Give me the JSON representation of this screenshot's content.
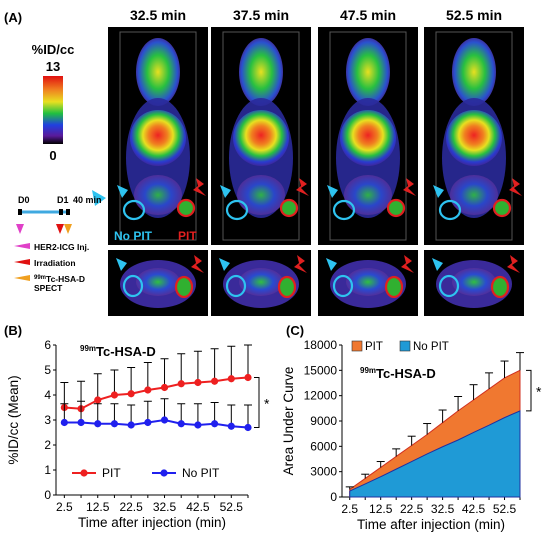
{
  "panel_a": {
    "label": "(A)",
    "time_labels": [
      "32.5 min",
      "37.5 min",
      "47.5 min",
      "52.5 min"
    ],
    "colorbar": {
      "unit": "%ID/cc",
      "max": "13",
      "min": "0"
    },
    "marker_labels": {
      "no_pit": "No PIT",
      "pit": "PIT"
    },
    "timeline": {
      "d0": "D0",
      "d1": "D1",
      "d1_extra": "40 min",
      "legend": [
        {
          "text": "HER2-ICG Inj.",
          "color": "#e040c8"
        },
        {
          "text": "Irradiation",
          "color": "#e01010"
        },
        {
          "text_sup": "99m",
          "text": "Tc-HSA-D",
          "text2": "SPECT",
          "color": "#f0a020"
        }
      ]
    }
  },
  "chart_data": [
    {
      "type": "line",
      "panel_label": "(B)",
      "title_sup": "99m",
      "title": "Tc-HSA-D",
      "xlabel": "Time after injection (min)",
      "ylabel": "%ID/cc (Mean)",
      "xlim": [
        0,
        57.5
      ],
      "ylim": [
        0,
        6
      ],
      "xticks": [
        "2.5",
        "12.5",
        "22.5",
        "32.5",
        "42.5",
        "52.5"
      ],
      "yticks": [
        "0",
        "1",
        "2",
        "3",
        "4",
        "5",
        "6"
      ],
      "x": [
        2.5,
        7.5,
        12.5,
        17.5,
        22.5,
        27.5,
        32.5,
        37.5,
        42.5,
        47.5,
        52.5,
        57.5
      ],
      "series": [
        {
          "name": "PIT",
          "color": "#ee2020",
          "values": [
            3.5,
            3.45,
            3.8,
            4.0,
            4.05,
            4.2,
            4.3,
            4.45,
            4.5,
            4.55,
            4.65,
            4.7
          ],
          "errors": [
            1.0,
            1.1,
            1.05,
            1.0,
            1.05,
            1.1,
            1.15,
            1.2,
            1.25,
            1.3,
            1.3,
            1.3
          ]
        },
        {
          "name": "No PIT",
          "color": "#2020ee",
          "values": [
            2.9,
            2.9,
            2.85,
            2.85,
            2.8,
            2.9,
            3.0,
            2.85,
            2.8,
            2.85,
            2.75,
            2.7
          ],
          "errors": [
            0.75,
            0.85,
            0.8,
            0.8,
            0.8,
            0.85,
            0.85,
            0.8,
            0.85,
            0.85,
            0.85,
            0.9
          ]
        }
      ],
      "significance": "*",
      "legend_position": "bottom-left"
    },
    {
      "type": "area",
      "panel_label": "(C)",
      "title_sup": "99m",
      "title": "Tc-HSA-D",
      "xlabel": "Time after injection (min)",
      "ylabel": "Area Under Curve",
      "xlim": [
        0,
        57.5
      ],
      "ylim": [
        0,
        18000
      ],
      "xticks": [
        "2.5",
        "12.5",
        "22.5",
        "32.5",
        "42.5",
        "52.5"
      ],
      "yticks": [
        "0",
        "3000",
        "6000",
        "9000",
        "12000",
        "15000",
        "18000"
      ],
      "x": [
        2.5,
        7.5,
        12.5,
        17.5,
        22.5,
        27.5,
        32.5,
        37.5,
        42.5,
        47.5,
        52.5,
        57.5
      ],
      "series": [
        {
          "name": "PIT",
          "color": "#f07830",
          "values": [
            900,
            2200,
            3500,
            4800,
            6100,
            7400,
            8800,
            10200,
            11500,
            12800,
            14100,
            15000
          ],
          "errors": [
            300,
            500,
            700,
            900,
            1100,
            1300,
            1500,
            1700,
            1800,
            1900,
            2000,
            2100
          ]
        },
        {
          "name": "No PIT",
          "color": "#1f9ad6",
          "values": [
            700,
            1550,
            2400,
            3300,
            4200,
            5100,
            5950,
            6750,
            7650,
            8500,
            9400,
            10200
          ],
          "errors": []
        }
      ],
      "significance": "*",
      "legend_position": "top-left"
    }
  ]
}
